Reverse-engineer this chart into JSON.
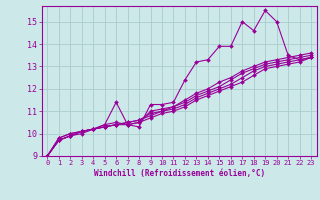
{
  "xlabel": "Windchill (Refroidissement éolien,°C)",
  "bg_color": "#cce8e8",
  "line_color": "#990099",
  "grid_color": "#aacccc",
  "xlim": [
    -0.5,
    23.5
  ],
  "ylim": [
    9.0,
    15.7
  ],
  "yticks": [
    9,
    10,
    11,
    12,
    13,
    14,
    15
  ],
  "xticks": [
    0,
    1,
    2,
    3,
    4,
    5,
    6,
    7,
    8,
    9,
    10,
    11,
    12,
    13,
    14,
    15,
    16,
    17,
    18,
    19,
    20,
    21,
    22,
    23
  ],
  "series": [
    [
      9.0,
      9.8,
      10.0,
      10.1,
      10.2,
      10.4,
      11.4,
      10.4,
      10.3,
      11.3,
      11.3,
      11.4,
      12.4,
      13.2,
      13.3,
      13.9,
      13.9,
      15.0,
      14.6,
      15.5,
      15.0,
      13.5,
      13.3,
      13.4
    ],
    [
      9.0,
      9.8,
      10.0,
      10.1,
      10.2,
      10.4,
      10.5,
      10.4,
      10.5,
      11.0,
      11.1,
      11.2,
      11.5,
      11.8,
      12.0,
      12.3,
      12.5,
      12.8,
      13.0,
      13.2,
      13.3,
      13.4,
      13.5,
      13.6
    ],
    [
      9.0,
      9.7,
      9.9,
      10.1,
      10.2,
      10.3,
      10.4,
      10.5,
      10.6,
      10.9,
      11.0,
      11.2,
      11.4,
      11.7,
      11.9,
      12.1,
      12.4,
      12.7,
      12.9,
      13.1,
      13.2,
      13.3,
      13.4,
      13.5
    ],
    [
      9.0,
      9.7,
      9.9,
      10.1,
      10.2,
      10.3,
      10.4,
      10.5,
      10.6,
      10.8,
      11.0,
      11.1,
      11.3,
      11.6,
      11.8,
      12.0,
      12.2,
      12.5,
      12.8,
      13.0,
      13.1,
      13.2,
      13.3,
      13.4
    ],
    [
      9.0,
      9.7,
      9.9,
      10.0,
      10.2,
      10.3,
      10.4,
      10.4,
      10.5,
      10.7,
      10.9,
      11.0,
      11.2,
      11.5,
      11.7,
      11.9,
      12.1,
      12.3,
      12.6,
      12.9,
      13.0,
      13.1,
      13.2,
      13.4
    ]
  ]
}
